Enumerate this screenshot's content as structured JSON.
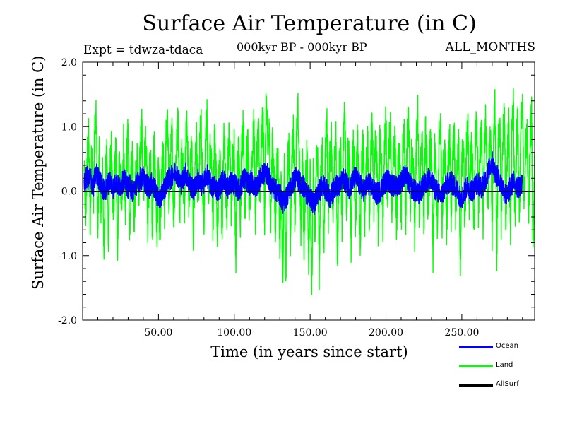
{
  "chart_data": {
    "type": "line",
    "title": "Surface Air Temperature (in C)",
    "subtitle": "000kyr BP - 000kyr BP",
    "expt_label": "Expt = tdwza-tdaca",
    "months_label": "ALL_MONTHS",
    "xlabel": "Time (in years since start)",
    "ylabel": "Surface Air Temperature (in C)",
    "xlim": [
      0,
      298
    ],
    "ylim": [
      -2.0,
      2.0
    ],
    "x_ticks": [
      50,
      100,
      150,
      200,
      250
    ],
    "x_tick_labels": [
      "50.00",
      "100.00",
      "150.00",
      "200.00",
      "250.00"
    ],
    "y_ticks": [
      -2.0,
      -1.0,
      0.0,
      1.0,
      2.0
    ],
    "y_tick_labels": [
      "-2.0",
      "-1.0",
      "0.0",
      "1.0",
      "2.0"
    ],
    "grid": false,
    "legend_position": "bottom-right",
    "zero_line": true,
    "series": [
      {
        "name": "Ocean",
        "color": "#0000ff",
        "values_by_year": [
          0.1,
          0.18,
          0.22,
          0.15,
          0.25,
          0.12,
          0.05,
          0.2,
          0.28,
          0.22,
          0.18,
          0.12,
          0.05,
          0.02,
          0.0,
          0.1,
          0.12,
          0.18,
          0.1,
          0.05,
          0.08,
          0.15,
          0.1,
          0.05,
          0.08,
          0.12,
          0.18,
          0.15,
          0.1,
          0.05,
          0.1,
          0.02,
          0.0,
          0.05,
          0.1,
          0.12,
          0.15,
          0.2,
          0.18,
          0.22,
          0.15,
          0.1,
          0.08,
          0.05,
          0.1,
          0.12,
          0.05,
          0.0,
          -0.05,
          -0.1,
          -0.15,
          -0.05,
          0.0,
          0.05,
          0.1,
          0.15,
          0.2,
          0.18,
          0.25,
          0.28,
          0.3,
          0.28,
          0.22,
          0.15,
          0.12,
          0.18,
          0.25,
          0.28,
          0.22,
          0.15,
          0.1,
          0.05,
          0.02,
          0.05,
          0.12,
          0.18,
          0.12,
          0.08,
          0.1,
          0.15,
          0.2,
          0.25,
          0.18,
          0.12,
          0.08,
          0.05,
          0.1,
          0.05,
          0.0,
          0.05,
          0.1,
          0.15,
          0.2,
          0.12,
          0.08,
          0.05,
          0.1,
          0.15,
          0.12,
          0.1,
          0.08,
          0.05,
          0.0,
          0.05,
          0.12,
          0.18,
          0.2,
          0.15,
          0.12,
          0.1,
          0.15,
          0.12,
          0.08,
          0.05,
          0.1,
          0.15,
          0.18,
          0.22,
          0.25,
          0.28,
          0.3,
          0.25,
          0.18,
          0.12,
          0.08,
          0.05,
          0.02,
          0.0,
          -0.02,
          -0.05,
          -0.1,
          -0.18,
          -0.15,
          -0.1,
          -0.05,
          0.0,
          0.05,
          0.1,
          0.15,
          0.2,
          0.22,
          0.18,
          0.15,
          0.12,
          0.08,
          0.05,
          0.0,
          -0.05,
          -0.1,
          -0.12,
          -0.15,
          -0.2,
          -0.18,
          -0.1,
          -0.05,
          0.0,
          0.05,
          0.08,
          0.1,
          0.05,
          0.0,
          -0.05,
          -0.1,
          -0.05,
          0.0,
          0.05,
          0.1,
          0.08,
          0.05,
          0.1,
          0.15,
          0.2,
          0.18,
          0.12,
          0.08,
          0.05,
          0.1,
          0.15,
          0.2,
          0.22,
          0.18,
          0.12,
          0.1,
          0.05,
          0.0,
          0.02,
          0.08,
          0.12,
          0.1,
          0.08,
          0.05,
          0.0,
          -0.02,
          -0.05,
          -0.02,
          0.0,
          0.05,
          0.1,
          0.12,
          0.15,
          0.18,
          0.15,
          0.12,
          0.1,
          0.08,
          0.05,
          0.08,
          0.1,
          0.12,
          0.15,
          0.2,
          0.25,
          0.22,
          0.18,
          0.12,
          0.1,
          0.05,
          0.02,
          0.0,
          -0.02,
          -0.05,
          -0.02,
          0.0,
          0.05,
          0.1,
          0.12,
          0.15,
          0.2,
          0.18,
          0.12,
          0.1,
          0.05,
          0.02,
          0.0,
          -0.05,
          -0.08,
          -0.05,
          0.0,
          0.05,
          0.1,
          0.12,
          0.15,
          0.12,
          0.1,
          0.08,
          0.05,
          0.0,
          -0.05,
          -0.08,
          -0.1,
          -0.05,
          0.0,
          0.05,
          0.08,
          0.05,
          0.02,
          0.0,
          0.05,
          0.1,
          0.12,
          0.1,
          0.08,
          0.05,
          0.1,
          0.15,
          0.2,
          0.28,
          0.35,
          0.4,
          0.45,
          0.38,
          0.3,
          0.25,
          0.2,
          0.15,
          0.1,
          0.05,
          0.0,
          -0.05,
          -0.08,
          0.0,
          0.05,
          0.1,
          0.15,
          0.12,
          0.1,
          0.05,
          0.08,
          0.12,
          0.1
        ],
        "noise_amplitude": 0.18
      },
      {
        "name": "Land",
        "color": "#00ff00",
        "values_by_year": [
          0.3,
          -0.4,
          0.5,
          0.8,
          -0.5,
          0.7,
          -0.2,
          0.9,
          1.1,
          -0.6,
          0.6,
          -0.3,
          0.4,
          -0.8,
          0.2,
          0.5,
          -0.7,
          0.3,
          0.6,
          -0.4,
          0.1,
          0.7,
          -0.9,
          0.5,
          0.2,
          -0.3,
          0.8,
          -0.5,
          0.4,
          0.9,
          -0.6,
          0.3,
          0.6,
          -0.4,
          0.2,
          0.5,
          -0.3,
          0.7,
          1.0,
          -0.2,
          0.6,
          0.8,
          -0.5,
          0.3,
          0.4,
          -0.6,
          0.7,
          0.2,
          -0.7,
          0.4,
          -0.8,
          0.1,
          0.6,
          -0.3,
          0.8,
          1.0,
          -0.2,
          0.5,
          0.9,
          -0.4,
          0.3,
          0.7,
          1.1,
          -0.3,
          0.5,
          0.6,
          -0.4,
          0.8,
          1.0,
          -0.2,
          0.3,
          0.7,
          -0.6,
          0.4,
          0.9,
          -0.3,
          0.5,
          1.1,
          0.2,
          -0.4,
          0.8,
          1.2,
          -0.3,
          0.6,
          0.4,
          -0.5,
          0.9,
          0.3,
          -0.7,
          0.5,
          0.2,
          -0.6,
          0.8,
          0.4,
          -0.5,
          0.6,
          0.9,
          -0.3,
          0.5,
          0.7,
          -1.1,
          0.4,
          0.6,
          -0.4,
          0.8,
          1.0,
          -0.3,
          0.5,
          0.7,
          -0.5,
          0.3,
          0.6,
          1.0,
          -0.4,
          0.7,
          0.9,
          -0.3,
          0.8,
          1.1,
          -0.4,
          1.5,
          0.6,
          0.9,
          -0.5,
          0.7,
          0.4,
          -0.6,
          0.3,
          0.5,
          -0.8,
          0.2,
          -1.2,
          0.4,
          -1.4,
          0.3,
          0.6,
          -0.7,
          0.5,
          0.9,
          -0.4,
          0.8,
          1.2,
          0.3,
          -0.6,
          0.5,
          -0.9,
          0.3,
          0.6,
          -1.0,
          0.2,
          -1.6,
          0.3,
          -0.8,
          0.5,
          0.4,
          -1.2,
          0.3,
          0.7,
          -0.9,
          0.5,
          1.1,
          -0.4,
          0.6,
          0.8,
          -0.6,
          0.4,
          0.9,
          -1.0,
          0.3,
          0.7,
          -0.5,
          0.8,
          1.2,
          -0.3,
          0.6,
          0.4,
          -0.8,
          0.7,
          0.5,
          -0.6,
          0.9,
          0.3,
          -1.0,
          0.5,
          0.7,
          -0.5,
          0.4,
          0.8,
          -0.4,
          0.6,
          1.0,
          -0.3,
          0.7,
          0.5,
          -0.6,
          0.8,
          0.4,
          -0.5,
          0.6,
          1.1,
          -0.3,
          0.7,
          0.9,
          -0.4,
          0.5,
          0.8,
          -0.6,
          0.4,
          0.7,
          -0.5,
          0.6,
          0.9,
          -0.4,
          0.8,
          1.1,
          -0.3,
          0.6,
          0.5,
          -0.7,
          0.7,
          1.2,
          -0.4,
          0.6,
          0.8,
          -0.5,
          0.9,
          0.4,
          -0.6,
          0.7,
          0.5,
          -1.1,
          0.6,
          0.3,
          -0.7,
          0.8,
          1.0,
          -0.4,
          0.5,
          0.7,
          -0.6,
          0.4,
          0.8,
          -0.5,
          0.6,
          0.9,
          -0.4,
          0.5,
          0.7,
          -1.4,
          0.4,
          0.8,
          -0.5,
          0.6,
          1.0,
          -0.3,
          0.7,
          0.5,
          -0.6,
          0.8,
          1.1,
          -0.4,
          0.6,
          0.9,
          -0.5,
          0.7,
          1.2,
          -0.3,
          0.5,
          0.8,
          -0.6,
          0.9,
          1.3,
          -1.1,
          0.7,
          1.1,
          -0.4,
          0.8,
          1.2,
          -0.5,
          0.6,
          1.0,
          -0.7,
          0.8,
          1.4,
          -0.6,
          0.7,
          1.1,
          -0.4,
          0.9,
          1.5,
          -0.3,
          0.6,
          1.0,
          -0.5,
          0.8,
          1.2,
          -1.0,
          0.5,
          0.7
        ],
        "noise_amplitude": 0.35
      },
      {
        "name": "AllSurf",
        "color": "#000000",
        "values_by_year": []
      }
    ]
  }
}
